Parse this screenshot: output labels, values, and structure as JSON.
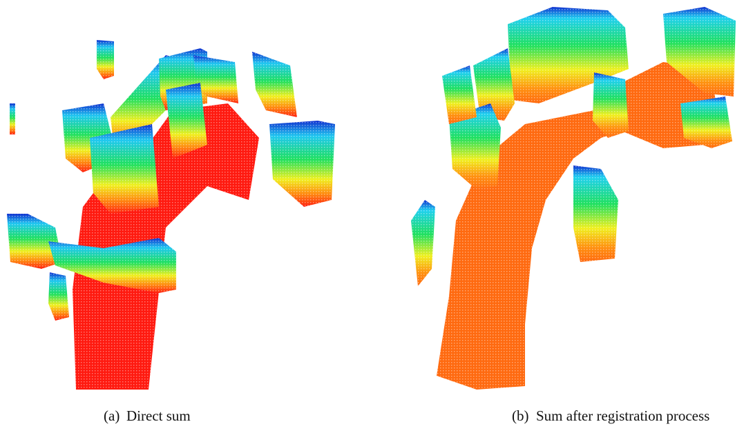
{
  "figures": [
    {
      "label": "(a)",
      "caption": "Direct sum"
    },
    {
      "label": "(b)",
      "caption": "Sum after registration process"
    }
  ]
}
